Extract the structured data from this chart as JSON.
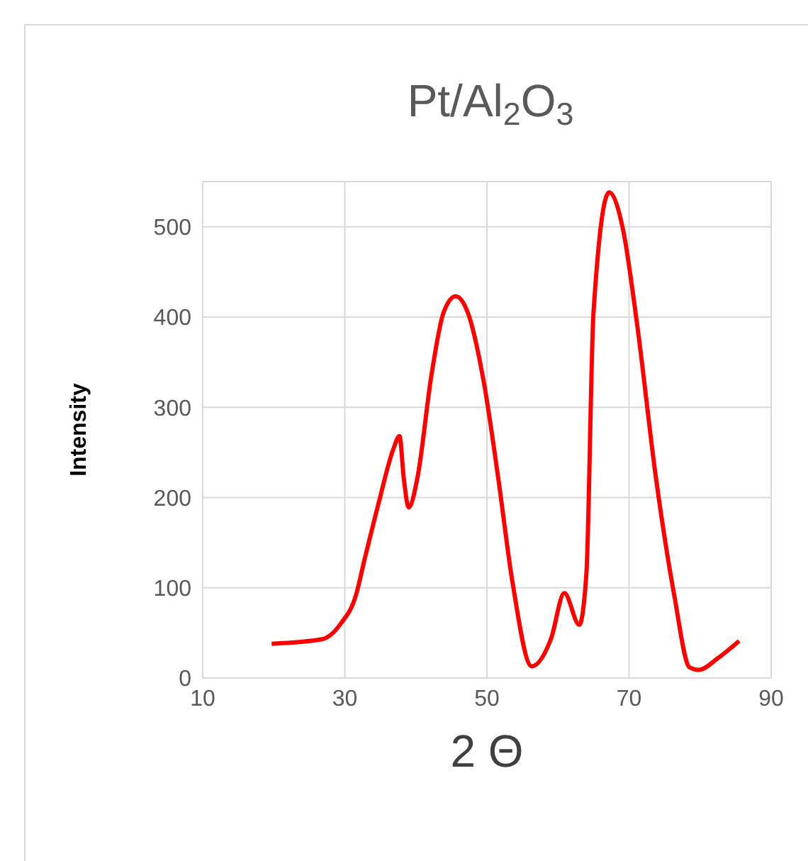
{
  "chart_data": {
    "type": "line",
    "title": "Pt/Al$_{2}$O$_{3}$",
    "xlabel": "2 Θ",
    "ylabel": "Intensity",
    "x": [
      19.7,
      26.8,
      29.5,
      31.5,
      32.8,
      34.8,
      36.8,
      37.7,
      38.3,
      39,
      40.2,
      42.2,
      43.9,
      45.6,
      47.3,
      49.6,
      51.6,
      53.6,
      56.3,
      59,
      60.9,
      63,
      64,
      65,
      67.2,
      69.1,
      71.1,
      73.8,
      76.4,
      78.5,
      79.8,
      82.5,
      85.5
    ],
    "series": [
      {
        "color": "#ff0000",
        "values": [
          38,
          43,
          61,
          90,
          132,
          195,
          253,
          268,
          221,
          189,
          221,
          336,
          405,
          423,
          405,
          326,
          221,
          106,
          13,
          43,
          94,
          59,
          116,
          405,
          538,
          499,
          394,
          221,
          90,
          12,
          9,
          22,
          41
        ]
      }
    ],
    "xlim": [
      10,
      90
    ],
    "xticks": [
      10,
      30,
      50,
      70,
      90
    ],
    "ylim": [
      0,
      550
    ],
    "yticks": [
      0,
      100,
      200,
      300,
      400,
      500
    ],
    "grid": true,
    "marker": "none"
  }
}
